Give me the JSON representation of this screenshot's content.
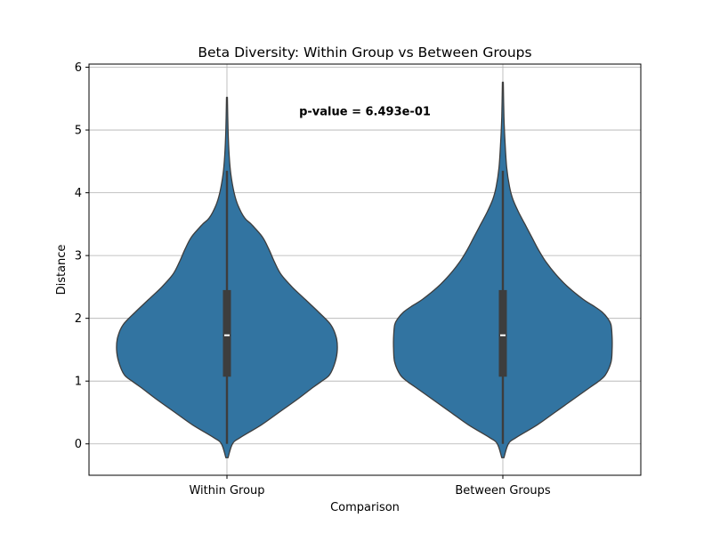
{
  "chart_data": {
    "type": "violin",
    "title": "Beta Diversity: Within Group vs Between Groups",
    "xlabel": "Comparison",
    "ylabel": "Distance",
    "ylim": [
      -0.5,
      6.05
    ],
    "yticks": [
      0,
      1,
      2,
      3,
      4,
      5,
      6
    ],
    "grid": true,
    "annotation": "p-value = 6.493e-01",
    "colors": {
      "fill": "#3274a1",
      "edge": "#3d3d3d",
      "box": "#3d3d3d",
      "median": "#ffffff",
      "grid": "#b0b0b0"
    },
    "categories": [
      "Within Group",
      "Between Groups"
    ],
    "series": [
      {
        "category": "Within Group",
        "min": -0.22,
        "max": 5.52,
        "q1": 1.07,
        "median": 1.73,
        "q3": 2.45,
        "whisker_low": 0.0,
        "whisker_high": 4.35,
        "density": [
          [
            -0.22,
            0.01
          ],
          [
            0.0,
            0.05
          ],
          [
            0.1,
            0.12
          ],
          [
            0.3,
            0.31
          ],
          [
            0.5,
            0.47
          ],
          [
            0.7,
            0.63
          ],
          [
            0.9,
            0.78
          ],
          [
            1.0,
            0.86
          ],
          [
            1.1,
            0.93
          ],
          [
            1.3,
            0.98
          ],
          [
            1.5,
            1.0
          ],
          [
            1.7,
            0.99
          ],
          [
            1.9,
            0.94
          ],
          [
            2.1,
            0.83
          ],
          [
            2.3,
            0.71
          ],
          [
            2.5,
            0.59
          ],
          [
            2.7,
            0.49
          ],
          [
            2.9,
            0.43
          ],
          [
            3.1,
            0.38
          ],
          [
            3.3,
            0.32
          ],
          [
            3.5,
            0.22
          ],
          [
            3.6,
            0.16
          ],
          [
            3.8,
            0.1
          ],
          [
            4.0,
            0.065
          ],
          [
            4.3,
            0.035
          ],
          [
            4.6,
            0.02
          ],
          [
            5.0,
            0.01
          ],
          [
            5.52,
            0.004
          ]
        ]
      },
      {
        "category": "Between Groups",
        "min": -0.22,
        "max": 5.76,
        "q1": 1.07,
        "median": 1.73,
        "q3": 2.45,
        "whisker_low": 0.0,
        "whisker_high": 4.35,
        "density": [
          [
            -0.22,
            0.01
          ],
          [
            0.0,
            0.05
          ],
          [
            0.1,
            0.12
          ],
          [
            0.3,
            0.31
          ],
          [
            0.5,
            0.47
          ],
          [
            0.7,
            0.63
          ],
          [
            0.9,
            0.79
          ],
          [
            1.0,
            0.87
          ],
          [
            1.1,
            0.93
          ],
          [
            1.3,
            0.98
          ],
          [
            1.5,
            0.99
          ],
          [
            1.7,
            0.99
          ],
          [
            1.9,
            0.98
          ],
          [
            2.0,
            0.95
          ],
          [
            2.1,
            0.9
          ],
          [
            2.2,
            0.82
          ],
          [
            2.3,
            0.73
          ],
          [
            2.5,
            0.59
          ],
          [
            2.7,
            0.48
          ],
          [
            2.9,
            0.39
          ],
          [
            3.1,
            0.32
          ],
          [
            3.3,
            0.26
          ],
          [
            3.5,
            0.2
          ],
          [
            3.7,
            0.14
          ],
          [
            3.9,
            0.09
          ],
          [
            4.1,
            0.06
          ],
          [
            4.4,
            0.035
          ],
          [
            4.8,
            0.02
          ],
          [
            5.2,
            0.01
          ],
          [
            5.76,
            0.004
          ]
        ]
      }
    ]
  }
}
